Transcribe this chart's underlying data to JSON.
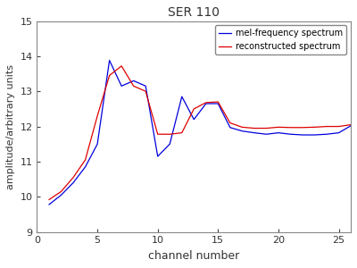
{
  "title": "SER 110",
  "xlabel": "channel number",
  "ylabel": "amplitude/arbitrary units",
  "xlim": [
    0,
    26
  ],
  "ylim": [
    9,
    15
  ],
  "yticks": [
    9,
    10,
    11,
    12,
    13,
    14,
    15
  ],
  "xticks": [
    0,
    5,
    10,
    15,
    20,
    25
  ],
  "blue_x": [
    1,
    2,
    3,
    4,
    5,
    6,
    7,
    8,
    9,
    10,
    11,
    12,
    13,
    14,
    15,
    16,
    17,
    18,
    19,
    20,
    21,
    22,
    23,
    24,
    25,
    26
  ],
  "blue_y": [
    9.78,
    10.05,
    10.4,
    10.85,
    11.5,
    13.88,
    13.15,
    13.3,
    13.15,
    11.15,
    11.5,
    12.85,
    12.2,
    12.65,
    12.65,
    11.97,
    11.87,
    11.82,
    11.78,
    11.82,
    11.78,
    11.76,
    11.76,
    11.78,
    11.82,
    12.02
  ],
  "red_x": [
    1,
    2,
    3,
    4,
    5,
    6,
    7,
    8,
    9,
    10,
    11,
    12,
    13,
    14,
    15,
    16,
    17,
    18,
    19,
    20,
    21,
    22,
    23,
    24,
    25,
    26
  ],
  "red_y": [
    9.92,
    10.15,
    10.55,
    11.05,
    12.3,
    13.45,
    13.72,
    13.15,
    13.0,
    11.78,
    11.78,
    11.82,
    12.5,
    12.68,
    12.7,
    12.1,
    11.98,
    11.95,
    11.95,
    11.98,
    11.97,
    11.97,
    11.98,
    12.0,
    12.0,
    12.05
  ],
  "blue_color": "#0000dd",
  "red_color": "#dd0000",
  "blue_label": "mel-frequency spectrum",
  "red_label": "reconstructed spectrum",
  "linewidth": 0.9,
  "bg_color": "#ffffff",
  "legend_loc": "upper right"
}
